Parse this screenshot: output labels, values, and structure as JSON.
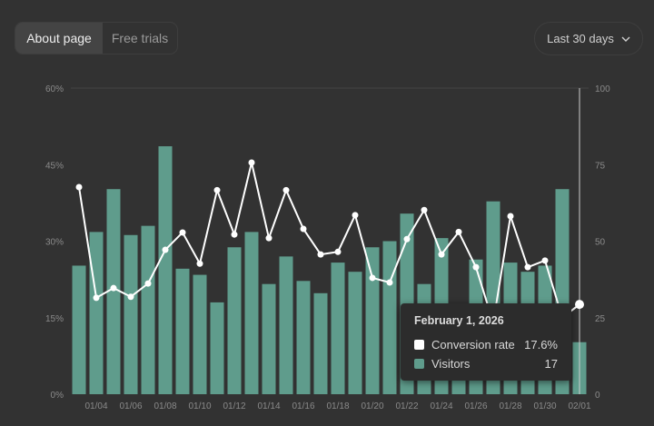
{
  "tabs": [
    {
      "label": "About page",
      "selected": true
    },
    {
      "label": "Free trials",
      "selected": false
    }
  ],
  "range_dropdown": {
    "label": "Last 30 days",
    "icon": "chevron-down-icon"
  },
  "colors": {
    "bar": "#5f9c8c",
    "line": "#ffffff",
    "background": "#323232"
  },
  "tooltip": {
    "date": "February 1, 2026",
    "rows": [
      {
        "label": "Conversion rate",
        "value": "17.6%",
        "color": "#ffffff"
      },
      {
        "label": "Visitors",
        "value": "17",
        "color": "#5f9c8c"
      }
    ]
  },
  "chart_data": {
    "type": "bar+line",
    "dates": [
      "01/03",
      "01/04",
      "01/05",
      "01/06",
      "01/07",
      "01/08",
      "01/09",
      "01/10",
      "01/11",
      "01/12",
      "01/13",
      "01/14",
      "01/15",
      "01/16",
      "01/17",
      "01/18",
      "01/19",
      "01/20",
      "01/21",
      "01/22",
      "01/23",
      "01/24",
      "01/25",
      "01/26",
      "01/27",
      "01/28",
      "01/29",
      "01/30",
      "01/31",
      "02/01"
    ],
    "x_tick_labels": [
      "01/04",
      "01/06",
      "01/08",
      "01/10",
      "01/12",
      "01/14",
      "01/16",
      "01/18",
      "01/20",
      "01/22",
      "01/24",
      "01/26",
      "01/28",
      "01/30",
      "02/01"
    ],
    "series": [
      {
        "name": "Visitors",
        "type": "bar",
        "axis": "right",
        "values": [
          42,
          53,
          67,
          52,
          55,
          81,
          41,
          39,
          30,
          48,
          53,
          36,
          45,
          37,
          33,
          43,
          40,
          48,
          50,
          59,
          36,
          51,
          25,
          44,
          63,
          43,
          40,
          42,
          67,
          17
        ]
      },
      {
        "name": "Conversion rate",
        "type": "line",
        "axis": "left",
        "unit": "%",
        "values": [
          40.6,
          18.9,
          20.8,
          19.1,
          21.7,
          28.3,
          31.7,
          25.6,
          40.0,
          31.3,
          45.4,
          30.6,
          40.0,
          32.4,
          27.4,
          27.9,
          35.1,
          22.8,
          21.9,
          30.4,
          36.1,
          27.4,
          31.8,
          24.9,
          14.0,
          34.9,
          24.9,
          26.2,
          15.0,
          17.6
        ]
      }
    ],
    "left_axis": {
      "range": [
        0,
        60
      ],
      "ticks": [
        "0%",
        "15%",
        "30%",
        "45%",
        "60%"
      ]
    },
    "right_axis": {
      "range": [
        0,
        100
      ],
      "ticks": [
        "0",
        "25",
        "50",
        "75",
        "100"
      ]
    },
    "hovered_date": "02/01"
  }
}
